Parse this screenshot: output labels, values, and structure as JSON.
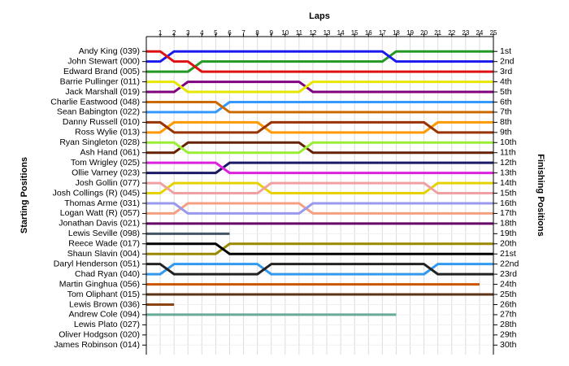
{
  "chart_data": {
    "type": "line",
    "x_label": "Laps",
    "y_label": "Starting Positions",
    "y2_label": "Finishing Positions",
    "x": [
      0,
      1,
      2,
      3,
      4,
      5,
      6,
      7,
      8,
      9,
      10,
      11,
      12,
      13,
      14,
      15,
      16,
      17,
      18,
      19,
      20,
      21,
      22,
      23,
      24,
      25
    ],
    "xlim": [
      0,
      25
    ],
    "xticks": [
      1,
      2,
      3,
      4,
      5,
      6,
      7,
      8,
      9,
      10,
      11,
      12,
      13,
      14,
      15,
      16,
      17,
      18,
      19,
      20,
      21,
      22,
      23,
      24,
      25
    ],
    "ylim": [
      30.5,
      0.5
    ],
    "grid": true,
    "yticks": [
      {
        "value": 1,
        "label": "1st"
      },
      {
        "value": 2,
        "label": "2nd"
      },
      {
        "value": 3,
        "label": "3rd"
      },
      {
        "value": 4,
        "label": "4th"
      },
      {
        "value": 5,
        "label": "5th"
      },
      {
        "value": 6,
        "label": "6th"
      },
      {
        "value": 7,
        "label": "7th"
      },
      {
        "value": 8,
        "label": "8th"
      },
      {
        "value": 9,
        "label": "9th"
      },
      {
        "value": 10,
        "label": "10th"
      },
      {
        "value": 11,
        "label": "11th"
      },
      {
        "value": 12,
        "label": "12th"
      },
      {
        "value": 13,
        "label": "13th"
      },
      {
        "value": 14,
        "label": "14th"
      },
      {
        "value": 15,
        "label": "15th"
      },
      {
        "value": 16,
        "label": "16th"
      },
      {
        "value": 17,
        "label": "17th"
      },
      {
        "value": 18,
        "label": "18th"
      },
      {
        "value": 19,
        "label": "19th"
      },
      {
        "value": 20,
        "label": "20th"
      },
      {
        "value": 21,
        "label": "21st"
      },
      {
        "value": 22,
        "label": "22nd"
      },
      {
        "value": 23,
        "label": "23rd"
      },
      {
        "value": 24,
        "label": "24th"
      },
      {
        "value": 25,
        "label": "25th"
      },
      {
        "value": 26,
        "label": "26th"
      },
      {
        "value": 27,
        "label": "27th"
      },
      {
        "value": 28,
        "label": "28th"
      },
      {
        "value": 29,
        "label": "29th"
      },
      {
        "value": 30,
        "label": "30th"
      }
    ],
    "series": [
      {
        "name": "Andy King (039)",
        "color": "#dd1111",
        "values": [
          1,
          1,
          2,
          2,
          3,
          3,
          3,
          3,
          3,
          3,
          3,
          3,
          3,
          3,
          3,
          3,
          3,
          3,
          3,
          3,
          3,
          3,
          3,
          3,
          3,
          3
        ]
      },
      {
        "name": "John Stewart (000)",
        "color": "#1a1aee",
        "values": [
          2,
          2,
          1,
          1,
          1,
          1,
          1,
          1,
          1,
          1,
          1,
          1,
          1,
          1,
          1,
          1,
          1,
          1,
          2,
          2,
          2,
          2,
          2,
          2,
          2,
          2
        ]
      },
      {
        "name": "Edward Brand (005)",
        "color": "#229922",
        "values": [
          3,
          3,
          3,
          3,
          2,
          2,
          2,
          2,
          2,
          2,
          2,
          2,
          2,
          2,
          2,
          2,
          2,
          2,
          1,
          1,
          1,
          1,
          1,
          1,
          1,
          1
        ]
      },
      {
        "name": "Barrie Pullinger (011)",
        "color": "#e6e600",
        "values": [
          4,
          4,
          4,
          5,
          5,
          5,
          5,
          5,
          5,
          5,
          5,
          5,
          4,
          4,
          4,
          4,
          4,
          4,
          4,
          4,
          4,
          4,
          4,
          4,
          4,
          4
        ]
      },
      {
        "name": "Jack Marshall (019)",
        "color": "#800080",
        "values": [
          5,
          5,
          5,
          4,
          4,
          4,
          4,
          4,
          4,
          4,
          4,
          4,
          5,
          5,
          5,
          5,
          5,
          5,
          5,
          5,
          5,
          5,
          5,
          5,
          5,
          5
        ]
      },
      {
        "name": "Charlie Eastwood (048)",
        "color": "#cc6a00",
        "values": [
          6,
          6,
          6,
          6,
          6,
          6,
          7,
          7,
          7,
          7,
          7,
          7,
          7,
          7,
          7,
          7,
          7,
          7,
          7,
          7,
          7,
          7,
          7,
          7,
          7,
          7
        ]
      },
      {
        "name": "Sean Babington (022)",
        "color": "#3399ff",
        "values": [
          7,
          7,
          7,
          7,
          7,
          7,
          6,
          6,
          6,
          6,
          6,
          6,
          6,
          6,
          6,
          6,
          6,
          6,
          6,
          6,
          6,
          6,
          6,
          6,
          6,
          6
        ]
      },
      {
        "name": "Danny Russell (010)",
        "color": "#993300",
        "values": [
          8,
          8,
          9,
          9,
          9,
          9,
          9,
          9,
          9,
          8,
          8,
          8,
          8,
          8,
          8,
          8,
          8,
          8,
          8,
          8,
          8,
          9,
          9,
          9,
          9,
          9
        ]
      },
      {
        "name": "Ross Wylie (013)",
        "color": "#ff9900",
        "values": [
          9,
          9,
          8,
          8,
          8,
          8,
          8,
          8,
          8,
          9,
          9,
          9,
          9,
          9,
          9,
          9,
          9,
          9,
          9,
          9,
          9,
          8,
          8,
          8,
          8,
          8
        ]
      },
      {
        "name": "Ryan Singleton (028)",
        "color": "#99ee33",
        "values": [
          10,
          10,
          10,
          11,
          11,
          11,
          11,
          11,
          11,
          11,
          11,
          11,
          10,
          10,
          10,
          10,
          10,
          10,
          10,
          10,
          10,
          10,
          10,
          10,
          10,
          10
        ]
      },
      {
        "name": "Ash Hand (061)",
        "color": "#662200",
        "values": [
          11,
          11,
          11,
          10,
          10,
          10,
          10,
          10,
          10,
          10,
          10,
          10,
          11,
          11,
          11,
          11,
          11,
          11,
          11,
          11,
          11,
          11,
          11,
          11,
          11,
          11
        ]
      },
      {
        "name": "Tom Wrigley (025)",
        "color": "#dd22dd",
        "values": [
          12,
          12,
          12,
          12,
          12,
          12,
          13,
          13,
          13,
          13,
          13,
          13,
          13,
          13,
          13,
          13,
          13,
          13,
          13,
          13,
          13,
          13,
          13,
          13,
          13,
          13
        ]
      },
      {
        "name": "Ollie Varney (023)",
        "color": "#1a1a66",
        "values": [
          13,
          13,
          13,
          13,
          13,
          13,
          12,
          12,
          12,
          12,
          12,
          12,
          12,
          12,
          12,
          12,
          12,
          12,
          12,
          12,
          12,
          12,
          12,
          12,
          12,
          12
        ]
      },
      {
        "name": "Josh Gollin (077)",
        "color": "#f0a0a0",
        "values": [
          14,
          14,
          15,
          15,
          15,
          15,
          15,
          15,
          15,
          14,
          14,
          14,
          14,
          14,
          14,
          14,
          14,
          14,
          14,
          14,
          14,
          15,
          15,
          15,
          15,
          15
        ]
      },
      {
        "name": "Josh Collings (R) (045)",
        "color": "#e6d200",
        "values": [
          15,
          15,
          14,
          14,
          14,
          14,
          14,
          14,
          14,
          15,
          15,
          15,
          15,
          15,
          15,
          15,
          15,
          15,
          15,
          15,
          15,
          14,
          14,
          14,
          14,
          14
        ]
      },
      {
        "name": "Thomas Arme (031)",
        "color": "#9999ee",
        "values": [
          16,
          16,
          16,
          17,
          17,
          17,
          17,
          17,
          17,
          17,
          17,
          17,
          16,
          16,
          16,
          16,
          16,
          16,
          16,
          16,
          16,
          16,
          16,
          16,
          16,
          16
        ]
      },
      {
        "name": "Logan Watt (R) (057)",
        "color": "#f4a080",
        "values": [
          17,
          17,
          17,
          16,
          16,
          16,
          16,
          16,
          16,
          16,
          16,
          16,
          17,
          17,
          17,
          17,
          17,
          17,
          17,
          17,
          17,
          17,
          17,
          17,
          17,
          17
        ]
      },
      {
        "name": "Jonathan Davis (021)",
        "color": "#660066",
        "values": [
          18,
          18,
          18,
          18,
          18,
          18,
          18,
          18,
          18,
          18,
          18,
          18,
          18,
          18,
          18,
          18,
          18,
          18,
          18,
          18,
          18,
          18,
          18,
          18,
          18,
          18
        ]
      },
      {
        "name": "Lewis Seville (098)",
        "color": "#445566",
        "values": [
          19,
          19,
          19,
          19,
          19,
          19,
          19,
          null,
          null,
          null,
          null,
          null,
          null,
          null,
          null,
          null,
          null,
          null,
          null,
          null,
          null,
          null,
          null,
          null,
          null,
          null
        ]
      },
      {
        "name": "Reece Wade (017)",
        "color": "#000000",
        "values": [
          20,
          20,
          20,
          20,
          20,
          20,
          21,
          21,
          21,
          21,
          21,
          21,
          21,
          21,
          21,
          21,
          21,
          21,
          21,
          21,
          21,
          21,
          21,
          21,
          21,
          21
        ]
      },
      {
        "name": "Shaun Slavin (004)",
        "color": "#998800",
        "values": [
          21,
          21,
          21,
          21,
          21,
          21,
          20,
          20,
          20,
          20,
          20,
          20,
          20,
          20,
          20,
          20,
          20,
          20,
          20,
          20,
          20,
          20,
          20,
          20,
          20,
          20
        ]
      },
      {
        "name": "Daryl Henderson (051)",
        "color": "#222222",
        "values": [
          22,
          22,
          23,
          23,
          23,
          23,
          23,
          23,
          23,
          22,
          22,
          22,
          22,
          22,
          22,
          22,
          22,
          22,
          22,
          22,
          22,
          23,
          23,
          23,
          23,
          23
        ]
      },
      {
        "name": "Chad Ryan (040)",
        "color": "#3399ee",
        "values": [
          23,
          23,
          22,
          22,
          22,
          22,
          22,
          22,
          22,
          23,
          23,
          23,
          23,
          23,
          23,
          23,
          23,
          23,
          23,
          23,
          23,
          22,
          22,
          22,
          22,
          22
        ]
      },
      {
        "name": "Martin Ginghua (056)",
        "color": "#cc5500",
        "values": [
          24,
          24,
          24,
          24,
          24,
          24,
          24,
          24,
          24,
          24,
          24,
          24,
          24,
          24,
          24,
          24,
          24,
          24,
          24,
          24,
          24,
          24,
          24,
          24,
          24,
          null
        ]
      },
      {
        "name": "Tom Oliphant (015)",
        "color": "#5c3317",
        "values": [
          25,
          25,
          25,
          25,
          25,
          25,
          25,
          25,
          25,
          25,
          25,
          25,
          25,
          25,
          25,
          25,
          25,
          25,
          25,
          25,
          25,
          25,
          25,
          25,
          25,
          25
        ]
      },
      {
        "name": "Lewis Brown (036)",
        "color": "#8b4513",
        "values": [
          26,
          26,
          26,
          null,
          null,
          null,
          null,
          null,
          null,
          null,
          null,
          null,
          null,
          null,
          null,
          null,
          null,
          null,
          null,
          null,
          null,
          null,
          null,
          null,
          null,
          null
        ]
      },
      {
        "name": "Andrew Cole (094)",
        "color": "#66aa99",
        "values": [
          27,
          27,
          27,
          27,
          27,
          27,
          27,
          27,
          27,
          27,
          27,
          27,
          27,
          27,
          27,
          27,
          27,
          27,
          27,
          null,
          null,
          null,
          null,
          null,
          null,
          null
        ]
      },
      {
        "name": "Lewis Plato (027)",
        "color": "#999999",
        "values": [
          28,
          null,
          null,
          null,
          null,
          null,
          null,
          null,
          null,
          null,
          null,
          null,
          null,
          null,
          null,
          null,
          null,
          null,
          null,
          null,
          null,
          null,
          null,
          null,
          null,
          null
        ]
      },
      {
        "name": "Oliver Hodgson (020)",
        "color": "#999999",
        "values": [
          29,
          null,
          null,
          null,
          null,
          null,
          null,
          null,
          null,
          null,
          null,
          null,
          null,
          null,
          null,
          null,
          null,
          null,
          null,
          null,
          null,
          null,
          null,
          null,
          null,
          null
        ]
      },
      {
        "name": "James Robinson (014)",
        "color": "#999999",
        "values": [
          30,
          null,
          null,
          null,
          null,
          null,
          null,
          null,
          null,
          null,
          null,
          null,
          null,
          null,
          null,
          null,
          null,
          null,
          null,
          null,
          null,
          null,
          null,
          null,
          null,
          null
        ]
      }
    ]
  }
}
